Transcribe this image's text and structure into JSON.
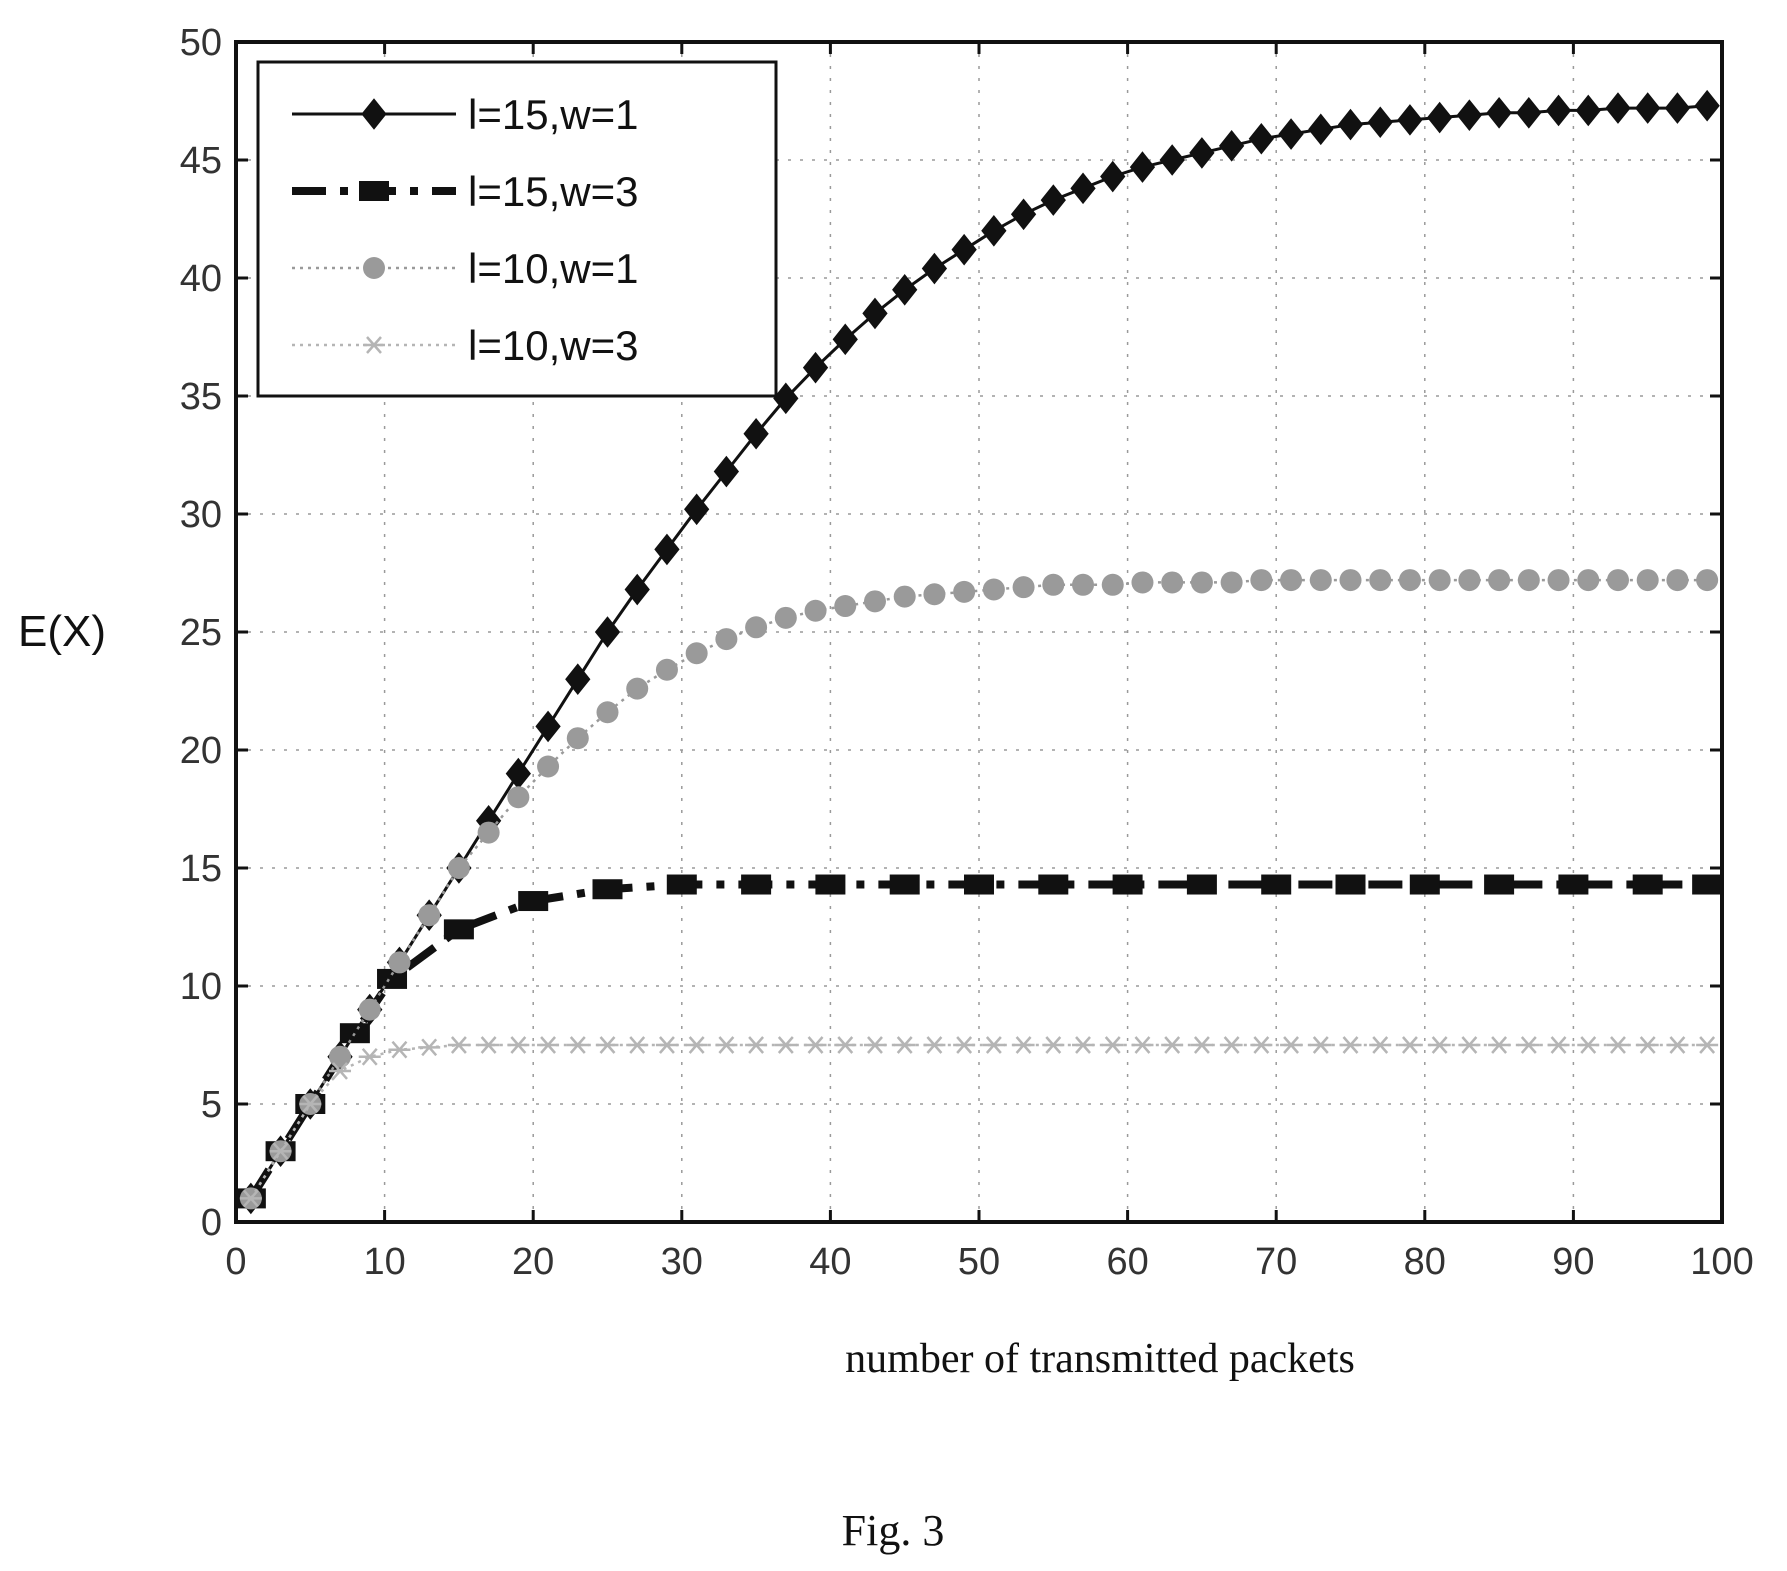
{
  "chart_data": {
    "type": "line",
    "title": "",
    "xlabel": "number of transmitted packets",
    "ylabel": "E(X)",
    "xlim": [
      0,
      100
    ],
    "ylim": [
      0,
      50
    ],
    "xticks": [
      "0",
      "10",
      "20",
      "30",
      "40",
      "50",
      "60",
      "70",
      "80",
      "90",
      "100"
    ],
    "yticks": [
      "0",
      "5",
      "10",
      "15",
      "20",
      "25",
      "30",
      "35",
      "40",
      "45",
      "50"
    ],
    "grid": true,
    "legend_position": "top-left",
    "series": [
      {
        "name": "l=15,w=1",
        "color": "#111111",
        "marker": "diamond",
        "line": "solid",
        "x": [
          1,
          3,
          5,
          7,
          9,
          11,
          13,
          15,
          17,
          19,
          21,
          23,
          25,
          27,
          29,
          31,
          33,
          35,
          37,
          39,
          41,
          43,
          45,
          47,
          49,
          51,
          53,
          55,
          57,
          59,
          61,
          63,
          65,
          67,
          69,
          71,
          73,
          75,
          77,
          79,
          81,
          83,
          85,
          87,
          89,
          91,
          93,
          95,
          97,
          99
        ],
        "y": [
          1.0,
          3.0,
          5.0,
          7.0,
          9.0,
          11.0,
          13.0,
          15.0,
          17.0,
          19.0,
          21.0,
          23.0,
          25.0,
          26.8,
          28.5,
          30.2,
          31.8,
          33.4,
          34.9,
          36.2,
          37.4,
          38.5,
          39.5,
          40.4,
          41.2,
          42.0,
          42.7,
          43.3,
          43.8,
          44.3,
          44.7,
          45.0,
          45.3,
          45.6,
          45.9,
          46.1,
          46.3,
          46.5,
          46.6,
          46.7,
          46.8,
          46.9,
          47.0,
          47.0,
          47.1,
          47.1,
          47.2,
          47.2,
          47.2,
          47.3
        ]
      },
      {
        "name": "l=15,w=3",
        "color": "#111111",
        "marker": "square",
        "line": "dashdot",
        "x": [
          1,
          3,
          5,
          8,
          10.5,
          15,
          20,
          25,
          30,
          35,
          40,
          45,
          50,
          55,
          60,
          65,
          70,
          75,
          80,
          85,
          90,
          95,
          99
        ],
        "y": [
          1.0,
          3.0,
          5.0,
          8.0,
          10.3,
          12.4,
          13.6,
          14.1,
          14.3,
          14.3,
          14.3,
          14.3,
          14.3,
          14.3,
          14.3,
          14.3,
          14.3,
          14.3,
          14.3,
          14.3,
          14.3,
          14.3,
          14.3
        ]
      },
      {
        "name": "l=10,w=1",
        "color": "#9a9a9a",
        "marker": "circle",
        "line": "dotted",
        "x": [
          1,
          3,
          5,
          7,
          9,
          11,
          13,
          15,
          17,
          19,
          21,
          23,
          25,
          27,
          29,
          31,
          33,
          35,
          37,
          39,
          41,
          43,
          45,
          47,
          49,
          51,
          53,
          55,
          57,
          59,
          61,
          63,
          65,
          67,
          69,
          71,
          73,
          75,
          77,
          79,
          81,
          83,
          85,
          87,
          89,
          91,
          93,
          95,
          97,
          99
        ],
        "y": [
          1.0,
          3.0,
          5.0,
          7.0,
          9.0,
          11.0,
          13.0,
          15.0,
          16.5,
          18.0,
          19.3,
          20.5,
          21.6,
          22.6,
          23.4,
          24.1,
          24.7,
          25.2,
          25.6,
          25.9,
          26.1,
          26.3,
          26.5,
          26.6,
          26.7,
          26.8,
          26.9,
          27.0,
          27.0,
          27.0,
          27.1,
          27.1,
          27.1,
          27.1,
          27.2,
          27.2,
          27.2,
          27.2,
          27.2,
          27.2,
          27.2,
          27.2,
          27.2,
          27.2,
          27.2,
          27.2,
          27.2,
          27.2,
          27.2,
          27.2
        ]
      },
      {
        "name": "l=10,w=3",
        "color": "#b5b5b5",
        "marker": "star",
        "line": "dotted",
        "x": [
          1,
          3,
          5,
          7,
          9,
          11,
          13,
          15,
          17,
          19,
          21,
          23,
          25,
          27,
          29,
          31,
          33,
          35,
          37,
          39,
          41,
          43,
          45,
          47,
          49,
          51,
          53,
          55,
          57,
          59,
          61,
          63,
          65,
          67,
          69,
          71,
          73,
          75,
          77,
          79,
          81,
          83,
          85,
          87,
          89,
          91,
          93,
          95,
          97,
          99
        ],
        "y": [
          1.0,
          3.0,
          5.0,
          6.4,
          7.0,
          7.3,
          7.4,
          7.5,
          7.5,
          7.5,
          7.5,
          7.5,
          7.5,
          7.5,
          7.5,
          7.5,
          7.5,
          7.5,
          7.5,
          7.5,
          7.5,
          7.5,
          7.5,
          7.5,
          7.5,
          7.5,
          7.5,
          7.5,
          7.5,
          7.5,
          7.5,
          7.5,
          7.5,
          7.5,
          7.5,
          7.5,
          7.5,
          7.5,
          7.5,
          7.5,
          7.5,
          7.5,
          7.5,
          7.5,
          7.5,
          7.5,
          7.5,
          7.5,
          7.5,
          7.5
        ]
      }
    ]
  },
  "caption": "Fig. 3"
}
